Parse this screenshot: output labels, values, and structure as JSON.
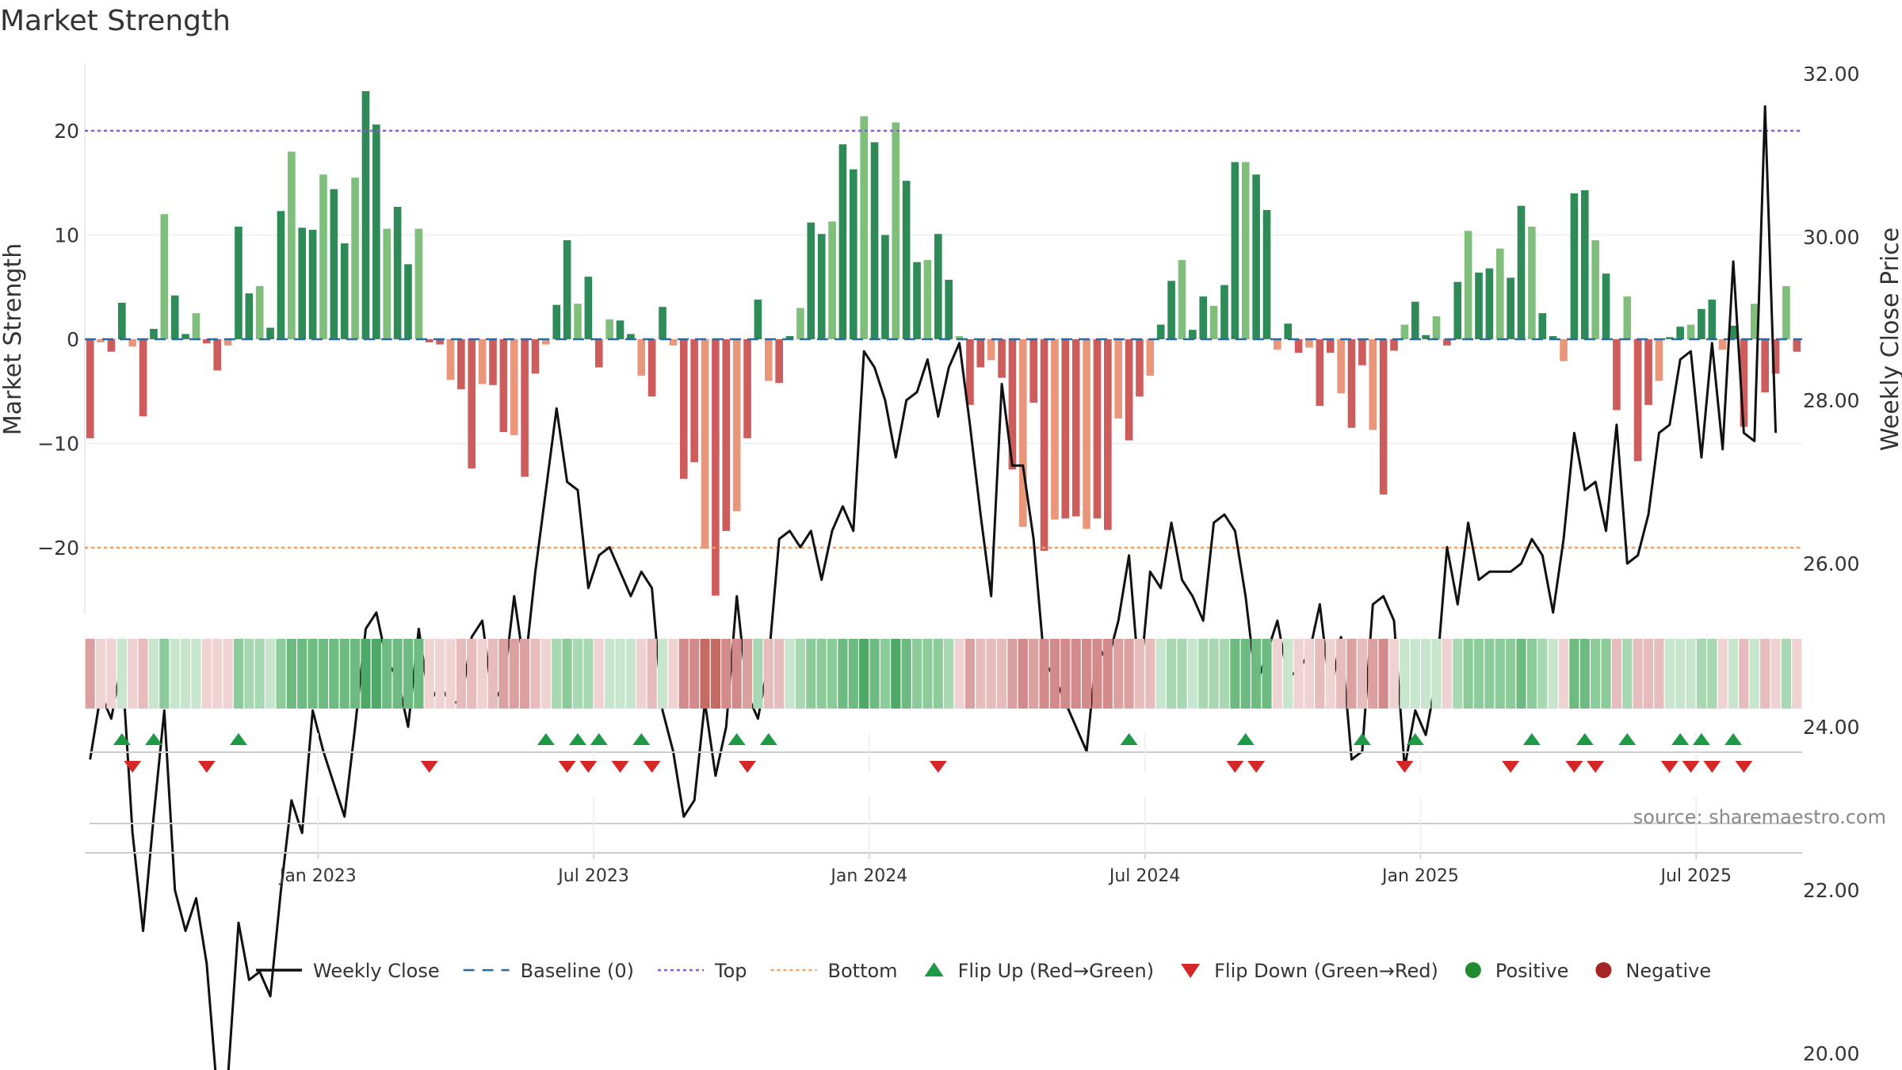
{
  "chart_data": {
    "type": "bar+line",
    "title": "Market Strength",
    "ylabel_left": "Market Strength",
    "ylabel_right": "Weekly Close Price",
    "ylim_left": [
      -26,
      27
    ],
    "ylim_right": [
      19.0,
      32.5
    ],
    "yticks_left": [
      20,
      10,
      0,
      -10,
      -20
    ],
    "yticks_left_labels": [
      "20",
      "10",
      "0",
      "−10",
      "−20"
    ],
    "yticks_right": [
      32,
      30,
      28,
      26,
      24,
      22,
      20
    ],
    "yticks_right_labels": [
      "32.00",
      "30.00",
      "28.00",
      "26.00",
      "24.00",
      "22.00",
      "20.00"
    ],
    "top_level": 20,
    "bottom_level": -20,
    "start_date": "2022-08-01",
    "x_tick_labels": [
      "Jan 2023",
      "Jul 2023",
      "Jan 2024",
      "Jul 2024",
      "Jan 2025",
      "Jul 2025"
    ],
    "x_tick_weeks": [
      22,
      48,
      74,
      100,
      126,
      152
    ],
    "strength": [
      -9.5,
      -0.3,
      -1.2,
      3.5,
      -0.7,
      -7.4,
      1.0,
      12.0,
      4.2,
      0.5,
      2.5,
      -0.4,
      -3.0,
      -0.6,
      10.8,
      4.4,
      5.1,
      1.1,
      12.3,
      18.0,
      10.7,
      10.5,
      15.8,
      14.4,
      9.2,
      15.5,
      23.8,
      20.6,
      10.6,
      12.7,
      7.2,
      10.6,
      -0.3,
      -0.5,
      -3.9,
      -4.8,
      -12.4,
      -4.3,
      -4.4,
      -8.9,
      -9.2,
      -13.2,
      -3.3,
      -0.5,
      3.3,
      9.5,
      3.4,
      6.0,
      -2.7,
      1.9,
      1.8,
      0.5,
      -3.5,
      -5.5,
      3.1,
      -0.6,
      -13.4,
      -11.8,
      -20.1,
      -24.6,
      -18.4,
      -16.5,
      -9.5,
      3.8,
      -4.0,
      -4.2,
      0.3,
      3.0,
      11.2,
      10.1,
      11.3,
      18.7,
      16.3,
      21.4,
      18.9,
      10.0,
      20.8,
      15.2,
      7.4,
      7.6,
      10.1,
      5.7,
      0.3,
      -6.3,
      -2.7,
      -2.0,
      -3.7,
      -12.5,
      -18.0,
      -6.1,
      -20.3,
      -17.3,
      -17.2,
      -17.0,
      -18.2,
      -17.2,
      -18.3,
      -7.6,
      -9.7,
      -5.5,
      -3.5,
      1.4,
      5.6,
      7.6,
      0.9,
      4.1,
      3.2,
      5.2,
      17.0,
      17.0,
      15.8,
      12.4,
      -1.0,
      1.5,
      -1.3,
      -0.8,
      -6.4,
      -1.3,
      -5.2,
      -8.5,
      -2.5,
      -8.7,
      -14.9,
      -1.1,
      1.4,
      3.6,
      0.4,
      2.2,
      -0.6,
      5.5,
      10.4,
      6.4,
      6.8,
      8.7,
      5.9,
      12.8,
      10.8,
      2.5,
      0.3,
      -2.1,
      14.0,
      14.3,
      9.5,
      6.3,
      -6.8,
      4.1,
      -11.7,
      -6.3,
      -4.0,
      0.2,
      1.2,
      1.4,
      2.9,
      3.8,
      -1.0,
      1.3,
      -8.4,
      3.4,
      -5.1,
      -3.3,
      5.1,
      -1.2
    ],
    "weekly_close": [
      23.6,
      24.4,
      24.1,
      24.8,
      22.7,
      21.5,
      22.9,
      24.2,
      22.0,
      21.5,
      21.9,
      21.1,
      19.5,
      19.7,
      21.6,
      20.9,
      21.0,
      20.7,
      22.0,
      23.1,
      22.7,
      24.2,
      23.7,
      23.3,
      22.9,
      24.0,
      25.2,
      25.4,
      24.8,
      24.6,
      24.0,
      25.2,
      24.3,
      24.5,
      24.3,
      24.3,
      25.1,
      25.3,
      24.3,
      24.5,
      25.6,
      24.7,
      25.9,
      26.9,
      27.9,
      27.0,
      26.9,
      25.7,
      26.1,
      26.2,
      25.9,
      25.6,
      25.9,
      25.7,
      24.2,
      23.7,
      22.9,
      23.1,
      24.3,
      23.4,
      24.0,
      25.6,
      24.4,
      24.1,
      24.8,
      26.3,
      26.4,
      26.2,
      26.4,
      25.8,
      26.4,
      26.7,
      26.4,
      28.6,
      28.4,
      28.0,
      27.3,
      28.0,
      28.1,
      28.5,
      27.8,
      28.4,
      28.7,
      27.7,
      26.6,
      25.6,
      28.2,
      27.2,
      27.2,
      26.3,
      24.8,
      24.6,
      24.3,
      24.0,
      23.7,
      25.0,
      24.8,
      25.3,
      26.1,
      24.5,
      25.9,
      25.7,
      26.5,
      25.8,
      25.6,
      25.3,
      26.5,
      26.6,
      26.4,
      25.6,
      24.5,
      24.9,
      25.3,
      24.6,
      24.7,
      24.9,
      25.5,
      24.4,
      25.1,
      23.6,
      23.7,
      25.5,
      25.6,
      25.3,
      23.5,
      24.2,
      23.9,
      24.6,
      26.2,
      25.5,
      26.5,
      25.8,
      25.9,
      25.9,
      25.9,
      26.0,
      26.3,
      26.1,
      25.4,
      26.3,
      27.6,
      26.9,
      27.0,
      26.4,
      27.7,
      26.0,
      26.1,
      26.6,
      27.6,
      27.7,
      28.5,
      28.6,
      27.3,
      28.7,
      27.4,
      29.7,
      27.6,
      27.5,
      31.6,
      27.6
    ],
    "heat_strength": [
      -3,
      -1,
      -1,
      1,
      -1,
      -2,
      1,
      3,
      1,
      1,
      1,
      -1,
      -1,
      -1,
      3,
      2,
      2,
      1,
      3,
      4,
      4,
      4,
      4,
      4,
      4,
      4,
      5,
      5,
      4,
      4,
      4,
      4,
      -1,
      -1,
      -1,
      -2,
      -2,
      -1,
      -2,
      -3,
      -3,
      -3,
      -2,
      -1,
      2,
      3,
      2,
      2,
      -1,
      1,
      1,
      1,
      -1,
      -2,
      1,
      -1,
      -4,
      -4,
      -5,
      -5,
      -4,
      -4,
      -3,
      2,
      -2,
      -2,
      1,
      2,
      3,
      3,
      3,
      4,
      4,
      5,
      4,
      3,
      5,
      4,
      3,
      3,
      3,
      2,
      -1,
      -3,
      -2,
      -2,
      -2,
      -3,
      -4,
      -3,
      -4,
      -4,
      -4,
      -4,
      -4,
      -4,
      -4,
      -3,
      -3,
      -2,
      -2,
      1,
      2,
      2,
      1,
      2,
      2,
      2,
      4,
      4,
      4,
      4,
      -1,
      1,
      -1,
      -1,
      -2,
      -1,
      -2,
      -3,
      -2,
      -3,
      -4,
      -1,
      1,
      1,
      1,
      1,
      -1,
      2,
      3,
      3,
      3,
      3,
      3,
      4,
      3,
      2,
      1,
      -1,
      4,
      4,
      3,
      3,
      -2,
      2,
      -2,
      -2,
      -2,
      1,
      1,
      1,
      2,
      2,
      -1,
      1,
      -2,
      1,
      -2,
      -1,
      2,
      -1
    ],
    "flip_up_weeks": [
      3,
      6,
      14,
      43,
      46,
      48,
      52,
      61,
      64,
      98,
      109,
      120,
      125,
      136,
      141,
      145,
      150,
      152,
      155
    ],
    "flip_down_weeks": [
      4,
      11,
      32,
      45,
      47,
      50,
      53,
      62,
      80,
      108,
      110,
      124,
      134,
      140,
      142,
      149,
      151,
      153,
      156
    ],
    "legend": [
      {
        "label": "Weekly Close",
        "kind": "line",
        "color": "#111111"
      },
      {
        "label": "Baseline (0)",
        "kind": "dash",
        "color": "#2b6aa3"
      },
      {
        "label": "Top",
        "kind": "dot",
        "color": "#8e5ad6"
      },
      {
        "label": "Bottom",
        "kind": "dot",
        "color": "#f0a060"
      },
      {
        "label": "Flip Up (Red→Green)",
        "kind": "up",
        "color": "#1e9a46"
      },
      {
        "label": "Flip Down (Green→Red)",
        "kind": "down",
        "color": "#d62728"
      },
      {
        "label": "Positive",
        "kind": "circle",
        "color": "#1f8a2e"
      },
      {
        "label": "Negative",
        "kind": "circle",
        "color": "#a52424"
      }
    ],
    "source": "source: sharemaestro.com"
  },
  "colors": {
    "pos_strong": "#2e8b57",
    "pos_light": "#7fbf7b",
    "neg_strong": "#cd5c5c",
    "neg_light": "#e9967a",
    "close_line": "#111111",
    "baseline": "#2b6aa3",
    "top_line": "#8e5ad6",
    "bottom_line": "#f0a060",
    "flip_up": "#1e9a46",
    "flip_down": "#d62728"
  }
}
